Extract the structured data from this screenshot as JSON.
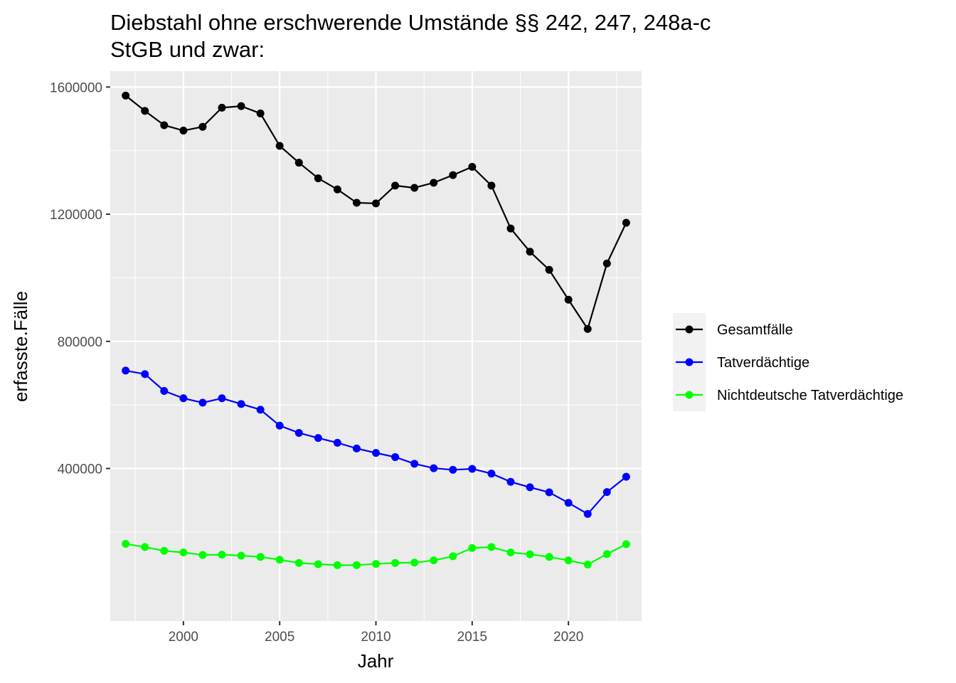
{
  "chart_data": {
    "type": "line",
    "title_line1": "Diebstahl ohne erschwerende Umstände §§ 242, 247, 248a-c",
    "title_line2": "StGB und zwar:",
    "xlabel": "Jahr",
    "ylabel": "erfasste.Fälle",
    "x": [
      1997,
      1998,
      1999,
      2000,
      2001,
      2002,
      2003,
      2004,
      2005,
      2006,
      2007,
      2008,
      2009,
      2010,
      2011,
      2012,
      2013,
      2014,
      2015,
      2016,
      2017,
      2018,
      2019,
      2020,
      2021,
      2022,
      2023
    ],
    "xlim": [
      1996.2,
      2023.8
    ],
    "ylim": [
      -80000,
      1650000
    ],
    "x_ticks": [
      2000,
      2005,
      2010,
      2015,
      2020
    ],
    "x_tick_labels": [
      "2000",
      "2005",
      "2010",
      "2015",
      "2020"
    ],
    "y_ticks": [
      400000,
      800000,
      1200000,
      1600000
    ],
    "y_tick_labels": [
      "400000",
      "800000",
      "1200000",
      "1600000"
    ],
    "grid": true,
    "legend_position": "right",
    "background": "#ebebeb",
    "series": [
      {
        "name": "Gesamtfälle",
        "color": "#000000",
        "values": [
          1573000,
          1525000,
          1480000,
          1463000,
          1475000,
          1535000,
          1540000,
          1517000,
          1415000,
          1362000,
          1313000,
          1278000,
          1236000,
          1234000,
          1290000,
          1283000,
          1299000,
          1323000,
          1349000,
          1290000,
          1155000,
          1082000,
          1025000,
          931000,
          839000,
          1045000,
          1173000
        ]
      },
      {
        "name": "Tatverdächtige",
        "color": "#0000ff",
        "values": [
          708000,
          697000,
          644000,
          621000,
          607000,
          621000,
          603000,
          585000,
          535000,
          512000,
          496000,
          481000,
          463000,
          449000,
          436000,
          415000,
          401000,
          396000,
          399000,
          384000,
          358000,
          341000,
          325000,
          292000,
          257000,
          326000,
          374000
        ]
      },
      {
        "name": "Nichtdeutsche Tatverdächtige",
        "color": "#00ff00",
        "values": [
          163000,
          153000,
          141000,
          136000,
          128000,
          129000,
          126000,
          122000,
          113000,
          103000,
          99000,
          96000,
          96000,
          100000,
          103000,
          104000,
          111000,
          124000,
          150000,
          153000,
          136000,
          130000,
          122000,
          111000,
          98000,
          131000,
          162000
        ]
      }
    ]
  }
}
